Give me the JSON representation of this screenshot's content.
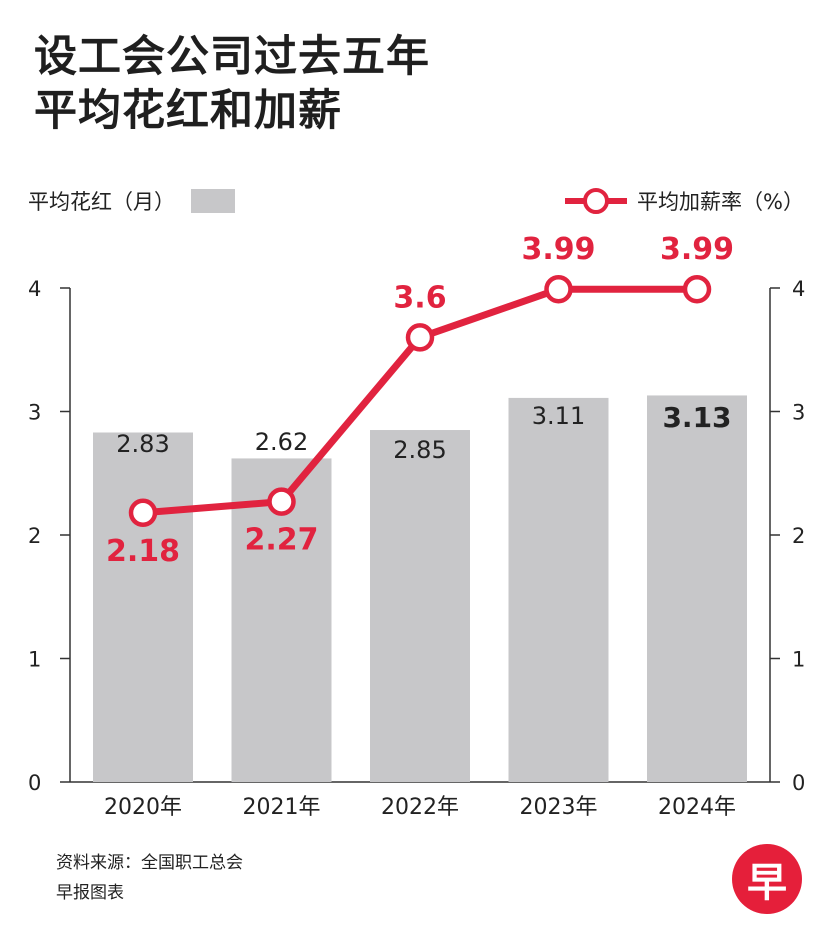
{
  "title": {
    "line1": "设工会公司过去五年",
    "line2": "平均花红和加薪"
  },
  "legend": {
    "bars_label": "平均花红（月）",
    "line_label": "平均加薪率（%）"
  },
  "colors": {
    "bar": "#c7c7c9",
    "line": "#e1233f",
    "text": "#222222",
    "axis": "#333333"
  },
  "chart_data": {
    "type": "bar+line",
    "categories": [
      "2020年",
      "2021年",
      "2022年",
      "2023年",
      "2024年"
    ],
    "series": [
      {
        "name": "平均花红（月）",
        "type": "bar",
        "axis": "left",
        "values": [
          2.83,
          2.62,
          2.85,
          3.11,
          3.13
        ],
        "labels": [
          "2.83",
          "2.62",
          "2.85",
          "3.11",
          "3.13"
        ]
      },
      {
        "name": "平均加薪率（%）",
        "type": "line",
        "axis": "right",
        "values": [
          2.18,
          2.27,
          3.6,
          3.99,
          3.99
        ],
        "labels": [
          "2.18",
          "2.27",
          "3.6",
          "3.99",
          "3.99"
        ]
      }
    ],
    "y_left": {
      "range": [
        0,
        4
      ],
      "ticks": [
        "0",
        "1",
        "2",
        "3",
        "4"
      ]
    },
    "y_right": {
      "range": [
        0,
        4
      ],
      "ticks": [
        "0",
        "1",
        "2",
        "3",
        "4"
      ]
    }
  },
  "source": {
    "line1": "资料来源：全国职工总会",
    "line2": "早报图表"
  },
  "logo": {
    "text": "早"
  }
}
